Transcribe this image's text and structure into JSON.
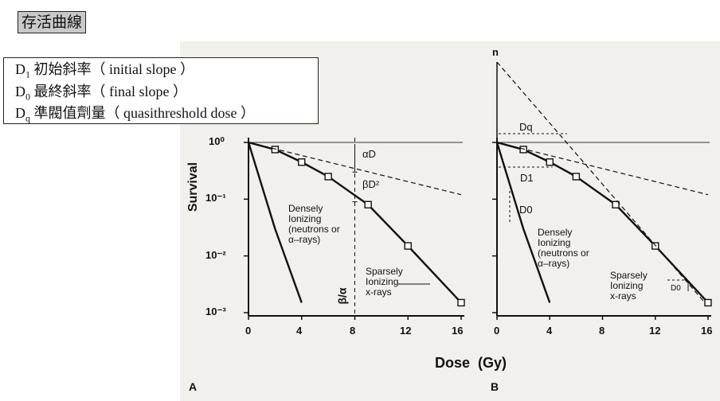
{
  "title": "存活曲線",
  "definitions": [
    {
      "symbol": "D",
      "sub": "1",
      "text": " 初始斜率（ initial slope ）"
    },
    {
      "symbol": "D",
      "sub": "0",
      "text": " 最終斜率（ final slope ）"
    },
    {
      "symbol": "D",
      "sub": "q",
      "text": " 準閥值劑量（ quasithreshold dose ）"
    }
  ],
  "figure": {
    "ylabel": "Survival",
    "xlabel": "Dose  (Gy)",
    "y_ticks": [
      "10⁰",
      "10⁻¹",
      "10⁻²",
      "10⁻³"
    ],
    "x_ticks": [
      "0",
      "4",
      "8",
      "12",
      "16"
    ],
    "panel_a": {
      "letter": "A",
      "alpha_label": "αD",
      "beta_label": "βD²",
      "ratio_label": "β/α",
      "dense_label": [
        "Densely",
        "Ionizing",
        "(neutrons or",
        "α–rays)"
      ],
      "sparse_label": [
        "Sparsely",
        "Ionizing",
        "x-rays"
      ]
    },
    "panel_b": {
      "letter": "B",
      "n_label": "n",
      "dq_label": "Dq",
      "d1_label": "D1",
      "d0_label": "D0",
      "d0_small_label": "D0",
      "dense_label": [
        "Densely",
        "Ionizing",
        "(neutrons or",
        "α–rays)"
      ],
      "sparse_label": [
        "Sparsely",
        "Ionizing",
        "x-rays"
      ]
    }
  },
  "chart_data": [
    {
      "type": "line",
      "panel": "A",
      "xlabel": "Dose (Gy)",
      "ylabel": "Survival",
      "log_y": true,
      "xlim": [
        0,
        16
      ],
      "ylim": [
        0.001,
        1
      ],
      "series": [
        {
          "name": "Densely Ionizing (neutrons or α-rays)",
          "x": [
            0,
            2,
            4
          ],
          "y": [
            1,
            0.03,
            0.0015
          ]
        },
        {
          "name": "Sparsely Ionizing x-rays",
          "x": [
            0,
            2,
            4,
            6,
            9,
            12,
            16
          ],
          "y": [
            1,
            0.75,
            0.45,
            0.25,
            0.08,
            0.015,
            0.0015
          ]
        },
        {
          "name": "",
          "x": [
            0,
            16
          ],
          "y": [
            1,
            0.12
          ]
        }
      ]
    },
    {
      "type": "line",
      "panel": "B",
      "xlabel": "Dose (Gy)",
      "ylabel": "Survival",
      "log_y": true,
      "xlim": [
        0,
        16
      ],
      "ylim": [
        0.001,
        1
      ],
      "series": [
        {
          "name": "Densely Ionizing (neutrons or α-rays)",
          "x": [
            0,
            2,
            4
          ],
          "y": [
            1,
            0.03,
            0.0015
          ]
        },
        {
          "name": "Sparsely Ionizing x-rays",
          "x": [
            0,
            2,
            4,
            6,
            9,
            12,
            16
          ],
          "y": [
            1,
            0.75,
            0.45,
            0.25,
            0.08,
            0.015,
            0.0015
          ]
        }
      ]
    }
  ]
}
